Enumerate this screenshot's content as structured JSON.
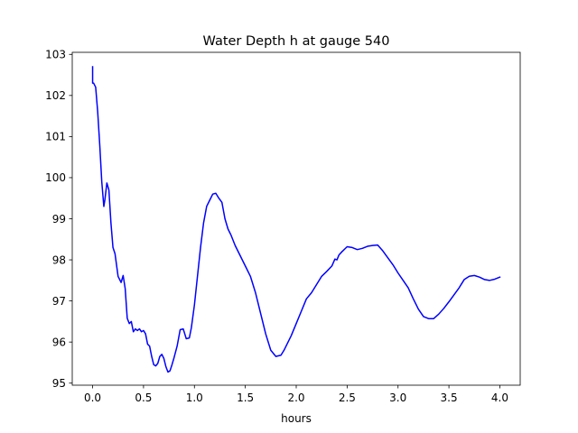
{
  "chart_data": {
    "type": "line",
    "title": "Water Depth h at gauge 540",
    "xlabel": "hours",
    "ylabel": "",
    "xlim": [
      -0.2,
      4.2
    ],
    "ylim": [
      94.95,
      103.05
    ],
    "x_ticks": [
      0.0,
      0.5,
      1.0,
      1.5,
      2.0,
      2.5,
      3.0,
      3.5,
      4.0
    ],
    "x_tick_labels": [
      "0.0",
      "0.5",
      "1.0",
      "1.5",
      "2.0",
      "2.5",
      "3.0",
      "3.5",
      "4.0"
    ],
    "y_ticks": [
      95,
      96,
      97,
      98,
      99,
      100,
      101,
      102,
      103
    ],
    "y_tick_labels": [
      "95",
      "96",
      "97",
      "98",
      "99",
      "100",
      "101",
      "102",
      "103"
    ],
    "grid": false,
    "legend": "none",
    "series": [
      {
        "color": "#0000ff",
        "x": [
          0.0,
          0.0,
          0.01,
          0.03,
          0.05,
          0.07,
          0.09,
          0.11,
          0.12,
          0.14,
          0.16,
          0.18,
          0.2,
          0.22,
          0.25,
          0.28,
          0.3,
          0.32,
          0.34,
          0.36,
          0.38,
          0.4,
          0.42,
          0.44,
          0.46,
          0.48,
          0.5,
          0.52,
          0.54,
          0.56,
          0.58,
          0.6,
          0.62,
          0.64,
          0.66,
          0.68,
          0.7,
          0.72,
          0.74,
          0.76,
          0.78,
          0.8,
          0.83,
          0.86,
          0.89,
          0.92,
          0.95,
          0.97,
          1.0,
          1.03,
          1.06,
          1.09,
          1.12,
          1.15,
          1.18,
          1.21,
          1.24,
          1.27,
          1.3,
          1.33,
          1.36,
          1.4,
          1.45,
          1.5,
          1.55,
          1.6,
          1.65,
          1.7,
          1.75,
          1.8,
          1.85,
          1.88,
          1.91,
          1.95,
          2.0,
          2.05,
          2.1,
          2.15,
          2.2,
          2.25,
          2.3,
          2.35,
          2.38,
          2.4,
          2.42,
          2.45,
          2.5,
          2.55,
          2.6,
          2.65,
          2.7,
          2.75,
          2.8,
          2.85,
          2.9,
          2.95,
          3.0,
          3.05,
          3.1,
          3.15,
          3.2,
          3.25,
          3.3,
          3.35,
          3.4,
          3.45,
          3.5,
          3.55,
          3.6,
          3.65,
          3.7,
          3.75,
          3.8,
          3.85,
          3.9,
          3.95,
          4.0
        ],
        "y": [
          102.7,
          102.3,
          102.3,
          102.2,
          101.6,
          100.8,
          99.9,
          99.3,
          99.45,
          99.87,
          99.7,
          98.9,
          98.3,
          98.15,
          97.6,
          97.45,
          97.62,
          97.3,
          96.58,
          96.45,
          96.5,
          96.25,
          96.32,
          96.28,
          96.32,
          96.25,
          96.28,
          96.2,
          95.95,
          95.9,
          95.65,
          95.45,
          95.42,
          95.48,
          95.65,
          95.7,
          95.6,
          95.4,
          95.27,
          95.3,
          95.45,
          95.62,
          95.9,
          96.3,
          96.32,
          96.08,
          96.1,
          96.35,
          96.9,
          97.6,
          98.3,
          98.9,
          99.3,
          99.45,
          99.6,
          99.62,
          99.5,
          99.4,
          99.0,
          98.75,
          98.6,
          98.35,
          98.1,
          97.85,
          97.6,
          97.2,
          96.7,
          96.2,
          95.8,
          95.65,
          95.68,
          95.8,
          95.95,
          96.15,
          96.45,
          96.75,
          97.05,
          97.2,
          97.4,
          97.6,
          97.72,
          97.85,
          98.02,
          98.0,
          98.12,
          98.2,
          98.32,
          98.3,
          98.25,
          98.28,
          98.33,
          98.35,
          98.36,
          98.22,
          98.05,
          97.88,
          97.68,
          97.5,
          97.32,
          97.05,
          96.8,
          96.62,
          96.57,
          96.57,
          96.68,
          96.82,
          96.98,
          97.15,
          97.32,
          97.52,
          97.6,
          97.62,
          97.58,
          97.52,
          97.5,
          97.53,
          97.58
        ]
      }
    ]
  }
}
